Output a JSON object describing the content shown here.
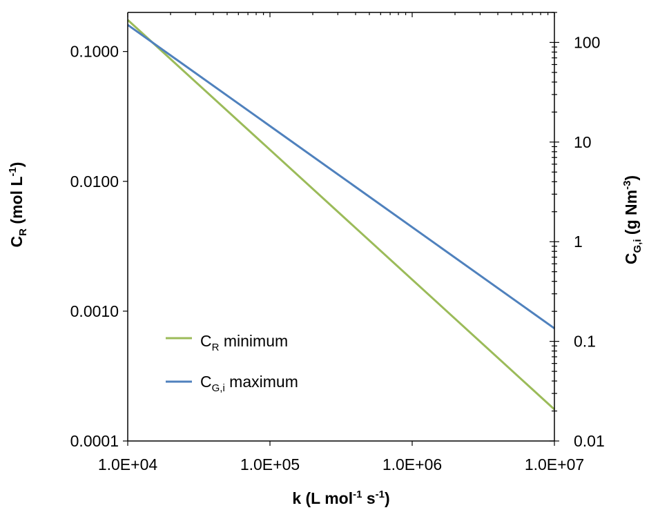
{
  "chart_data": {
    "type": "line",
    "x_scale": "log",
    "x": [
      10000,
      10000000
    ],
    "xlim": [
      10000,
      10000000
    ],
    "x_ticks": [
      10000,
      100000,
      1000000,
      10000000
    ],
    "x_tick_labels": [
      "1.0E+04",
      "1.0E+05",
      "1.0E+06",
      "1.0E+07"
    ],
    "xlabel": {
      "main": "k (L mol",
      "sup1": "-1",
      "mid": " s",
      "sup2": "-1",
      "end": ")"
    },
    "y_left": {
      "scale": "log",
      "lim": [
        0.0001,
        0.2
      ],
      "ticks": [
        0.0001,
        0.001,
        0.01,
        0.1
      ],
      "tick_labels": [
        "0.0001",
        "0.0010",
        "0.0100",
        "0.1000"
      ],
      "label": {
        "c": "C",
        "sub": "R",
        "main": " (mol L",
        "sup": "-1",
        "end": ")"
      }
    },
    "y_right": {
      "scale": "log",
      "lim": [
        0.01,
        200
      ],
      "ticks": [
        0.01,
        0.1,
        1,
        10,
        100
      ],
      "tick_labels": [
        "0.01",
        "0.1",
        "1",
        "10",
        "100"
      ],
      "label": {
        "c": "C",
        "sub": "G,i",
        "main": " (g Nm",
        "sup": "-3",
        "end": ")"
      }
    },
    "series": [
      {
        "name": "C_R minimum",
        "legend": {
          "c": "C",
          "sub": "R",
          "rest": " minimum"
        },
        "axis": "left",
        "color": "#9bbb59",
        "values": [
          0.175,
          0.000175
        ]
      },
      {
        "name": "C_G,i maximum",
        "legend": {
          "c": "C",
          "sub": "G,i",
          "rest": " maximum"
        },
        "axis": "right",
        "color": "#4f81bd",
        "values": [
          150,
          0.135
        ]
      }
    ],
    "legend_position": "lower-left inside",
    "grid": false
  }
}
